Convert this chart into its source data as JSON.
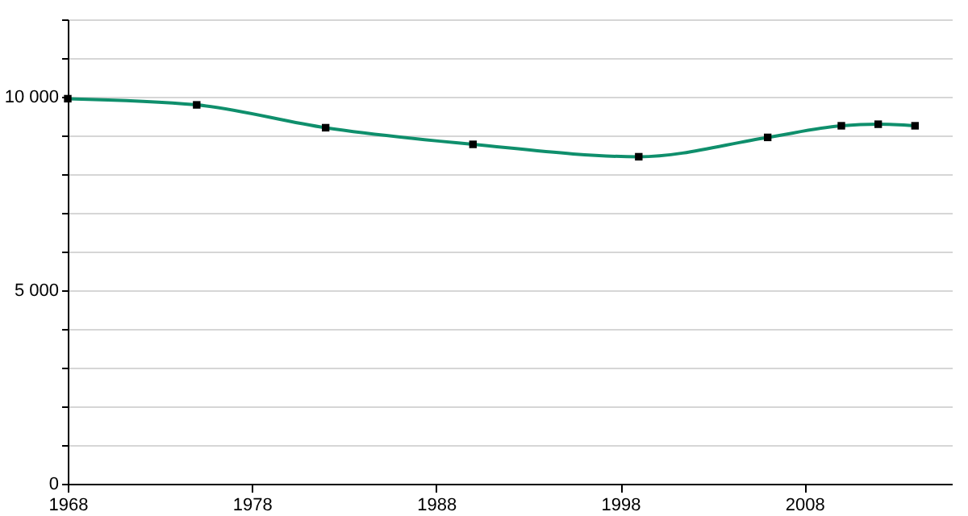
{
  "chart_data": {
    "type": "line",
    "x": [
      1968,
      1975,
      1982,
      1990,
      1999,
      2006,
      2010,
      2012,
      2014
    ],
    "series": [
      {
        "color": "#0f8f6c",
        "values": [
          9950,
          9790,
          9200,
          8770,
          8450,
          8950,
          9250,
          9290,
          9250
        ]
      }
    ],
    "xlim": [
      1968,
      2016
    ],
    "xticks": [
      1968,
      1978,
      1988,
      1998,
      2008
    ],
    "ylim": [
      0,
      12000
    ],
    "yticks": [
      0,
      {
        "value": 1000,
        "label": null
      },
      {
        "value": 2000,
        "label": null
      },
      {
        "value": 3000,
        "label": null
      },
      {
        "value": 4000,
        "label": null
      },
      {
        "value": 5000,
        "label": "5 000"
      },
      {
        "value": 6000,
        "label": null
      },
      {
        "value": 7000,
        "label": null
      },
      {
        "value": 8000,
        "label": null
      },
      {
        "value": 9000,
        "label": null
      },
      {
        "value": 10000,
        "label": "10 000"
      },
      {
        "value": 11000,
        "label": null
      },
      {
        "value": 12000,
        "label": null
      }
    ],
    "grid": "y",
    "marker": "square",
    "line_style": "solid"
  }
}
